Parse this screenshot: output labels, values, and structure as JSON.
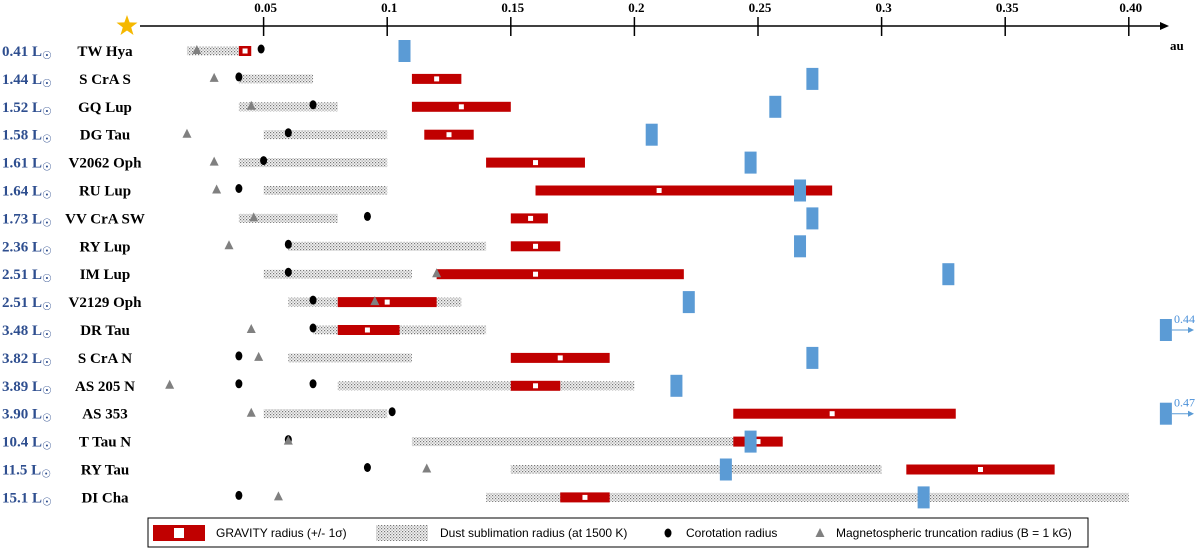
{
  "chart_data": {
    "type": "range-plot",
    "xlabel": "au",
    "xlim": [
      0,
      0.41
    ],
    "xticks": [
      0.05,
      0.1,
      0.15,
      0.2,
      0.25,
      0.3,
      0.35,
      0.4
    ],
    "xtick_labels": [
      "0.05",
      "0.1",
      "0.15",
      "0.2",
      "0.25",
      "0.3",
      "0.35",
      "0.40"
    ],
    "legend": {
      "gravity": "GRAVITY radius (+/- 1σ)",
      "dust": "Dust sublimation radius (at 1500 K)",
      "corotation": "Corotation radius",
      "magneto": "Magnetospheric truncation radius (B = 1 kG)"
    },
    "colors": {
      "gravity": "#c00000",
      "corotation": "#000000",
      "magneto": "#808080",
      "blue": "#5b9bd5",
      "star": "#f5b800",
      "lum": "#2e4e8f"
    },
    "stars": [
      {
        "lum": "0.41",
        "name": "TW Hya",
        "grav": [
          0.04,
          0.045
        ],
        "grav_c": 0.0425,
        "dust": [
          0.019,
          0.04
        ],
        "corot": 0.049,
        "mag": 0.023,
        "blue": 0.107
      },
      {
        "lum": "1.44",
        "name": "S CrA S",
        "grav": [
          0.11,
          0.13
        ],
        "grav_c": 0.12,
        "dust": [
          0.04,
          0.07
        ],
        "corot": 0.04,
        "mag": 0.03,
        "blue": 0.272
      },
      {
        "lum": "1.52",
        "name": "GQ Lup",
        "grav": [
          0.11,
          0.15
        ],
        "grav_c": 0.13,
        "dust": [
          0.04,
          0.08
        ],
        "corot": 0.07,
        "mag": 0.045,
        "blue": 0.257
      },
      {
        "lum": "1.58",
        "name": "DG Tau",
        "grav": [
          0.115,
          0.135
        ],
        "grav_c": 0.125,
        "dust": [
          0.05,
          0.1
        ],
        "corot": 0.06,
        "mag": 0.019,
        "blue": 0.207
      },
      {
        "lum": "1.61",
        "name": "V2062 Oph",
        "grav": [
          0.14,
          0.18
        ],
        "grav_c": 0.16,
        "dust": [
          0.04,
          0.1
        ],
        "corot": 0.05,
        "mag": 0.03,
        "blue": 0.247
      },
      {
        "lum": "1.64",
        "name": "RU Lup",
        "grav": [
          0.16,
          0.28
        ],
        "grav_c": 0.21,
        "dust": [
          0.05,
          0.1
        ],
        "corot": 0.04,
        "mag": 0.031,
        "blue": 0.267
      },
      {
        "lum": "1.73",
        "name": "VV CrA SW",
        "grav": [
          0.15,
          0.165
        ],
        "grav_c": 0.158,
        "dust": [
          0.04,
          0.08
        ],
        "corot": 0.092,
        "mag": 0.046,
        "blue": 0.272
      },
      {
        "lum": "2.36",
        "name": "RY Lup",
        "grav": [
          0.15,
          0.17
        ],
        "grav_c": 0.16,
        "dust": [
          0.06,
          0.14
        ],
        "corot": 0.06,
        "mag": 0.036,
        "blue": 0.267
      },
      {
        "lum": "2.51",
        "name": "IM Lup",
        "grav": [
          0.12,
          0.22
        ],
        "grav_c": 0.16,
        "dust": [
          0.05,
          0.11
        ],
        "corot": 0.06,
        "mag": 0.12,
        "blue": 0.327
      },
      {
        "lum": "2.51",
        "name": "V2129 Oph",
        "grav": [
          0.08,
          0.12
        ],
        "grav_c": 0.1,
        "dust": [
          0.06,
          0.13
        ],
        "corot": 0.07,
        "mag": 0.095,
        "blue": 0.222
      },
      {
        "lum": "3.48",
        "name": "DR Tau",
        "grav": [
          0.08,
          0.105
        ],
        "grav_c": 0.092,
        "dust": [
          0.07,
          0.14
        ],
        "corot": 0.07,
        "mag": 0.045,
        "blue": 0.415,
        "blue_label": "0.44"
      },
      {
        "lum": "3.82",
        "name": "S CrA N",
        "grav": [
          0.15,
          0.19
        ],
        "grav_c": 0.17,
        "dust": [
          0.06,
          0.11
        ],
        "corot": 0.04,
        "mag": 0.048,
        "blue": 0.272
      },
      {
        "lum": "3.89",
        "name": "AS 205 N",
        "grav": [
          0.15,
          0.17
        ],
        "grav_c": 0.16,
        "dust": [
          0.08,
          0.2
        ],
        "corot": 0.04,
        "corot2": 0.07,
        "mag": 0.012,
        "blue": 0.217
      },
      {
        "lum": "3.90",
        "name": "AS 353",
        "grav": [
          0.24,
          0.33
        ],
        "grav_c": 0.28,
        "dust": [
          0.05,
          0.1
        ],
        "corot": 0.102,
        "mag": 0.045,
        "blue": 0.415,
        "blue_label": "0.47"
      },
      {
        "lum": "10.4",
        "name": "T Tau N",
        "grav": [
          0.24,
          0.26
        ],
        "grav_c": 0.25,
        "dust": [
          0.11,
          0.26
        ],
        "corot": 0.06,
        "mag": 0.06,
        "blue": 0.247
      },
      {
        "lum": "11.5",
        "name": "RY Tau",
        "grav": [
          0.31,
          0.37
        ],
        "grav_c": 0.34,
        "dust": [
          0.15,
          0.3
        ],
        "corot": 0.092,
        "mag": 0.116,
        "blue": 0.237
      },
      {
        "lum": "15.1",
        "name": "DI Cha",
        "grav": [
          0.17,
          0.19
        ],
        "grav_c": 0.18,
        "dust": [
          0.14,
          0.4
        ],
        "corot": 0.04,
        "mag": 0.056,
        "blue": 0.317
      }
    ]
  }
}
